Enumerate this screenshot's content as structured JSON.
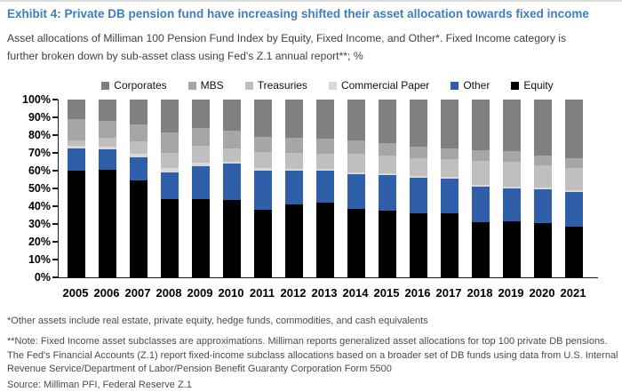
{
  "header": {
    "title": "Exhibit 4: Private DB pension fund have increasing shifted their asset allocation towards fixed income",
    "subtitle": "Asset allocations of Milliman 100 Pension Fund Index by Equity, Fixed Income, and Other*. Fixed Income category is further broken down by sub-asset class using Fed's Z.1 annual report**; %"
  },
  "chart_data": {
    "type": "bar",
    "variant": "stacked-100",
    "title": "",
    "xlabel": "",
    "ylabel": "%",
    "ylim": [
      0,
      100
    ],
    "ytick_labels": [
      "0%",
      "10%",
      "20%",
      "30%",
      "40%",
      "50%",
      "60%",
      "70%",
      "80%",
      "90%",
      "100%"
    ],
    "legend_position": "top",
    "legend_order": [
      "Corporates",
      "MBS",
      "Treasuries",
      "Commercial Paper",
      "Other",
      "Equity"
    ],
    "stack_order_bottom_to_top": [
      "Equity",
      "Other",
      "Commercial Paper",
      "Treasuries",
      "MBS",
      "Corporates"
    ],
    "categories": [
      "2005",
      "2006",
      "2007",
      "2008",
      "2009",
      "2010",
      "2011",
      "2012",
      "2013",
      "2014",
      "2015",
      "2016",
      "2017",
      "2018",
      "2019",
      "2020",
      "2021"
    ],
    "series": [
      {
        "name": "Equity",
        "color": "#000000",
        "values": [
          60,
          60.5,
          54.5,
          44,
          44,
          43.5,
          38,
          41,
          42,
          38.5,
          37.5,
          36,
          36,
          31,
          31.5,
          30.5,
          28.5
        ]
      },
      {
        "name": "Other",
        "color": "#2e5fa8",
        "values": [
          12.5,
          11.5,
          13,
          15,
          18.5,
          20.5,
          22,
          19,
          18,
          19.5,
          20,
          20,
          19.5,
          20,
          18.5,
          19,
          19.5
        ]
      },
      {
        "name": "Commercial Paper",
        "color": "#d9d9d9",
        "values": [
          1.5,
          1.5,
          2,
          2.5,
          2,
          1,
          1.5,
          1,
          1,
          1,
          1,
          1,
          1,
          1,
          1,
          1,
          1
        ]
      },
      {
        "name": "Treasuries",
        "color": "#bfbfbf",
        "values": [
          3,
          5,
          7,
          8.5,
          9.5,
          7.5,
          9,
          9,
          8.5,
          10.5,
          10,
          10,
          10,
          13.5,
          14,
          12.5,
          12.5
        ]
      },
      {
        "name": "MBS",
        "color": "#a6a6a6",
        "values": [
          12,
          9.5,
          9.5,
          11.5,
          10,
          10,
          8.5,
          8.5,
          8.5,
          7.5,
          7,
          6.5,
          6,
          6,
          6,
          5.5,
          5.5
        ]
      },
      {
        "name": "Corporates",
        "color": "#808080",
        "values": [
          11,
          12,
          14,
          18.5,
          16,
          17.5,
          21,
          21.5,
          22,
          23,
          24.5,
          26.5,
          27.5,
          28.5,
          29,
          31.5,
          33
        ]
      }
    ]
  },
  "footnotes": {
    "other_assets": "*Other assets include real estate, private equity, hedge funds, commodities, and cash equivalents",
    "note": "**Note: Fixed Income asset subclasses are approximations. Milliman reports generalized asset allocations for top 100 private DB pensions. The Fed's Financial Accounts (Z.1) report fixed-income subclass allocations based on a broader set of DB funds using data from U.S. Internal Revenue Service/Department of Labor/Pension Benefit Guaranty Corporation Form 5500",
    "source": "Source: Milliman PFI, Federal Reserve Z.1"
  }
}
